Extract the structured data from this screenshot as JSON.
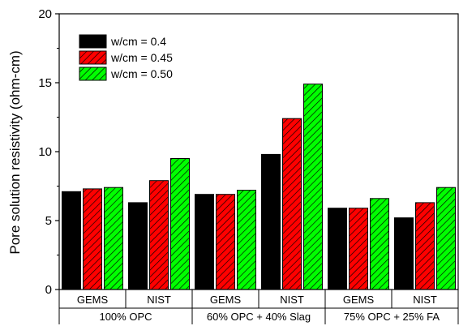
{
  "chart_data": {
    "type": "bar",
    "ylabel": "Pore solution resistivity (ohm-cm)",
    "ylim": [
      0,
      20
    ],
    "yticks": [
      0,
      5,
      10,
      15,
      20
    ],
    "groups": [
      {
        "label": "100% OPC",
        "subcategories": [
          "GEMS",
          "NIST"
        ]
      },
      {
        "label": "60% OPC + 40% Slag",
        "subcategories": [
          "GEMS",
          "NIST"
        ]
      },
      {
        "label": "75% OPC + 25% FA",
        "subcategories": [
          "GEMS",
          "NIST"
        ]
      }
    ],
    "categories": [
      "GEMS",
      "NIST",
      "GEMS",
      "NIST",
      "GEMS",
      "NIST"
    ],
    "series": [
      {
        "name": "w/cm = 0.4",
        "color": "#000000",
        "pattern": "solid",
        "values": [
          7.1,
          6.3,
          6.9,
          9.8,
          5.9,
          5.2
        ]
      },
      {
        "name": "w/cm = 0.45",
        "color": "#ff0000",
        "pattern": "hatch",
        "values": [
          7.3,
          7.9,
          6.9,
          12.4,
          5.9,
          6.3
        ]
      },
      {
        "name": "w/cm = 0.50",
        "color": "#00ff00",
        "pattern": "hatch",
        "values": [
          7.4,
          9.5,
          7.2,
          14.9,
          6.6,
          7.4
        ]
      }
    ],
    "legend_position": "top-left",
    "grid": false
  }
}
